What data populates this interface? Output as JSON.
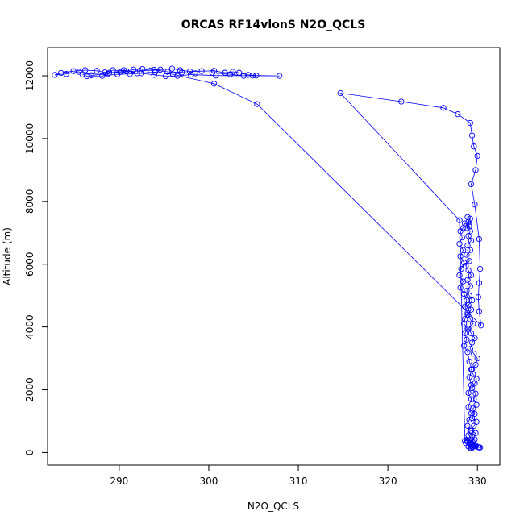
{
  "chart_data": {
    "type": "line",
    "title": "ORCAS RF14vlonS N2O_QCLS",
    "xlabel": "N2O_QCLS",
    "ylabel": "Altitude (m)",
    "xlim": [
      282,
      332.5
    ],
    "ylim": [
      -400,
      12900
    ],
    "xticks": [
      290,
      300,
      310,
      320,
      330
    ],
    "yticks": [
      0,
      2000,
      4000,
      6000,
      8000,
      10000,
      12000
    ],
    "grid": false,
    "marker": "open-circle",
    "series_color": "#0000ff",
    "series": [
      {
        "points": [
          [
            329.3,
            130
          ],
          [
            329.5,
            180
          ],
          [
            329.8,
            200
          ],
          [
            330.2,
            160
          ],
          [
            329.6,
            250
          ],
          [
            329.2,
            320
          ],
          [
            328.9,
            380
          ],
          [
            329.7,
            420
          ],
          [
            329.4,
            520
          ],
          [
            329.8,
            620
          ],
          [
            329.3,
            700
          ],
          [
            329.6,
            850
          ],
          [
            329.9,
            980
          ],
          [
            329.4,
            1100
          ],
          [
            329.7,
            1230
          ],
          [
            329.5,
            1400
          ],
          [
            329.9,
            1520
          ],
          [
            329.6,
            1700
          ],
          [
            329.8,
            1880
          ],
          [
            329.4,
            2050
          ],
          [
            329.7,
            2200
          ],
          [
            329.9,
            2350
          ],
          [
            329.5,
            2500
          ],
          [
            329.3,
            2650
          ],
          [
            329.8,
            2800
          ],
          [
            330.0,
            3000
          ],
          [
            329.6,
            3150
          ],
          [
            329.2,
            3300
          ],
          [
            329.4,
            3500
          ],
          [
            329.7,
            3650
          ],
          [
            329.3,
            3800
          ],
          [
            329.0,
            3950
          ],
          [
            329.5,
            4100
          ],
          [
            329.2,
            4250
          ],
          [
            328.9,
            4400
          ],
          [
            329.3,
            4550
          ],
          [
            329.0,
            4700
          ],
          [
            329.4,
            4850
          ],
          [
            329.1,
            5000
          ],
          [
            328.8,
            5150
          ],
          [
            329.2,
            5300
          ],
          [
            328.9,
            5500
          ],
          [
            329.3,
            5650
          ],
          [
            329.0,
            5800
          ],
          [
            328.7,
            5950
          ],
          [
            329.1,
            6100
          ],
          [
            328.8,
            6300
          ],
          [
            329.2,
            6450
          ],
          [
            328.9,
            6600
          ],
          [
            329.3,
            6750
          ],
          [
            329.0,
            6900
          ],
          [
            329.2,
            7050
          ],
          [
            328.8,
            7150
          ],
          [
            329.1,
            7250
          ],
          [
            329.0,
            7350
          ],
          [
            329.2,
            7450
          ],
          [
            328.9,
            7500
          ],
          [
            329.1,
            7200
          ],
          [
            328.6,
            7300
          ],
          [
            328.4,
            7150
          ],
          [
            328.1,
            7050
          ],
          [
            328.3,
            6850
          ],
          [
            328.0,
            6650
          ],
          [
            328.4,
            6450
          ],
          [
            328.1,
            6250
          ],
          [
            328.5,
            6050
          ],
          [
            328.2,
            5850
          ],
          [
            328.0,
            5650
          ],
          [
            328.4,
            5450
          ],
          [
            328.1,
            5250
          ],
          [
            328.5,
            5050
          ],
          [
            328.8,
            4850
          ],
          [
            328.6,
            4650
          ],
          [
            328.9,
            4450
          ],
          [
            328.6,
            4250
          ],
          [
            328.5,
            4100
          ],
          [
            328.9,
            3950
          ],
          [
            328.6,
            3800
          ],
          [
            328.8,
            3600
          ],
          [
            328.5,
            3400
          ],
          [
            328.9,
            3200
          ],
          [
            329.1,
            2900
          ],
          [
            329.4,
            2650
          ],
          [
            329.1,
            2400
          ],
          [
            329.3,
            2150
          ],
          [
            329.0,
            1900
          ],
          [
            329.3,
            1700
          ],
          [
            329.0,
            1450
          ],
          [
            329.3,
            1250
          ],
          [
            329.1,
            1050
          ],
          [
            328.9,
            850
          ],
          [
            329.2,
            700
          ],
          [
            329.0,
            550
          ],
          [
            328.8,
            400
          ],
          [
            329.1,
            300
          ],
          [
            329.3,
            250
          ],
          [
            329.0,
            190
          ],
          [
            329.2,
            150
          ],
          [
            329.4,
            170
          ],
          [
            329.7,
            210
          ],
          [
            330.1,
            170
          ],
          [
            330.3,
            160
          ],
          [
            329.8,
            240
          ],
          [
            329.5,
            320
          ],
          [
            329.2,
            400
          ],
          [
            328.9,
            340
          ],
          [
            328.7,
            300
          ],
          [
            328.6,
            380
          ],
          [
            328.0,
            7400
          ],
          [
            314.7,
            11450
          ],
          [
            321.5,
            11180
          ],
          [
            326.2,
            10980
          ],
          [
            327.8,
            10780
          ],
          [
            329.2,
            10500
          ],
          [
            329.4,
            10100
          ],
          [
            329.6,
            9750
          ],
          [
            330.0,
            9450
          ],
          [
            329.8,
            9000
          ],
          [
            329.3,
            8550
          ],
          [
            329.7,
            7900
          ],
          [
            330.2,
            6800
          ],
          [
            330.3,
            5850
          ],
          [
            330.2,
            5400
          ],
          [
            330.1,
            4950
          ],
          [
            330.2,
            4500
          ],
          [
            330.4,
            4050
          ],
          [
            305.4,
            11100
          ],
          [
            300.6,
            11750
          ],
          [
            296.0,
            12050
          ],
          [
            294.0,
            12120
          ],
          [
            292.0,
            12080
          ],
          [
            290.5,
            12180
          ],
          [
            288.7,
            12060
          ],
          [
            286.9,
            12020
          ],
          [
            285.5,
            12130
          ],
          [
            284.1,
            12060
          ],
          [
            282.8,
            12030
          ],
          [
            283.5,
            12090
          ],
          [
            284.9,
            12150
          ],
          [
            286.2,
            12180
          ],
          [
            287.5,
            12160
          ],
          [
            288.4,
            12110
          ],
          [
            289.3,
            12180
          ],
          [
            290.8,
            12150
          ],
          [
            291.6,
            12200
          ],
          [
            292.6,
            12220
          ],
          [
            293.5,
            12170
          ],
          [
            294.6,
            12200
          ],
          [
            295.9,
            12230
          ],
          [
            296.8,
            12180
          ],
          [
            297.9,
            12140
          ],
          [
            299.2,
            12150
          ],
          [
            300.6,
            12160
          ],
          [
            301.8,
            12100
          ],
          [
            302.7,
            12130
          ],
          [
            303.4,
            12100
          ],
          [
            304.4,
            12030
          ],
          [
            305.3,
            12010
          ],
          [
            307.9,
            12000
          ],
          [
            300.8,
            12010
          ],
          [
            298.0,
            12040
          ],
          [
            296.5,
            12000
          ],
          [
            295.2,
            11990
          ],
          [
            293.9,
            12030
          ],
          [
            292.5,
            12080
          ],
          [
            291.2,
            12060
          ],
          [
            289.8,
            12050
          ],
          [
            288.1,
            12000
          ],
          [
            286.4,
            11990
          ],
          [
            285.9,
            12050
          ],
          [
            288.9,
            12100
          ],
          [
            290.1,
            12120
          ],
          [
            292.3,
            12160
          ],
          [
            293.9,
            12190
          ],
          [
            295.4,
            12130
          ],
          [
            297.0,
            12110
          ],
          [
            298.5,
            12080
          ],
          [
            300.4,
            12100
          ],
          [
            302.4,
            12050
          ],
          [
            303.9,
            12000
          ],
          [
            304.9,
            12010
          ]
        ]
      }
    ]
  }
}
